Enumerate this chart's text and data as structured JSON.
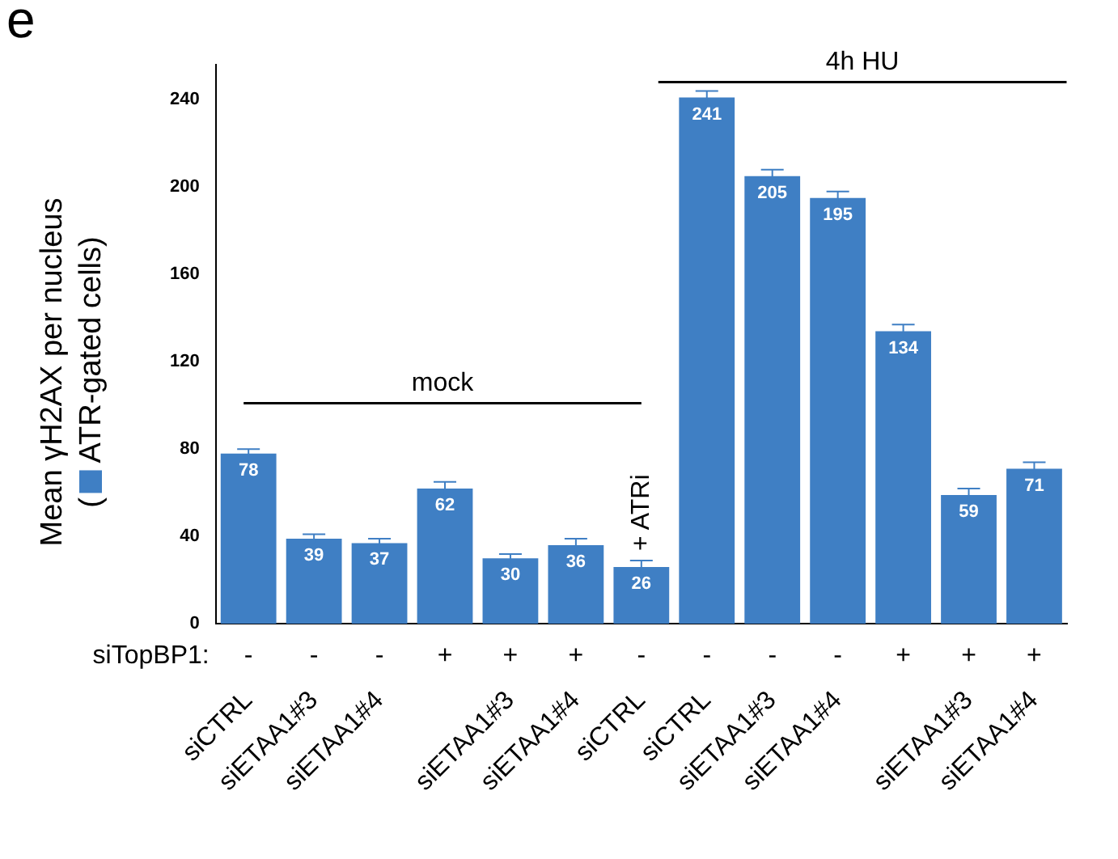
{
  "chart_data": {
    "type": "bar",
    "title": "e",
    "ylabel": "Mean γH2AX per nucleus\n( ATR-gated cells)",
    "categories": [
      "siCTRL",
      "siETAA1#3",
      "siETAA1#4",
      null,
      "siETAA1#3",
      "siETAA1#4",
      "siCTRL",
      "siCTRL",
      "siETAA1#3",
      "siETAA1#4",
      null,
      "siETAA1#3",
      "siETAA1#4"
    ],
    "values": [
      78,
      39,
      37,
      62,
      30,
      36,
      26,
      241,
      205,
      195,
      134,
      59,
      71
    ],
    "errors": [
      2,
      2,
      2,
      3,
      2,
      3,
      3,
      3,
      3,
      3,
      3,
      3,
      3
    ],
    "color": "#3f7fc4",
    "data_labels": true,
    "grid": false,
    "ylim": [
      0,
      256
    ],
    "yticks": [
      0,
      40,
      80,
      120,
      160,
      200,
      240
    ],
    "annotations": [
      "siTopBP1:",
      "-",
      "-",
      "-",
      "+",
      "+",
      "+",
      "-",
      "-",
      "-",
      "-",
      "+",
      "+",
      "+",
      "+ ATRi"
    ],
    "ref_lines": [
      {
        "axis": "y",
        "value": 101,
        "label": "mock",
        "color": "#000000"
      },
      {
        "axis": "y",
        "value": 248,
        "label": "4h HU",
        "color": "#000000"
      }
    ]
  }
}
